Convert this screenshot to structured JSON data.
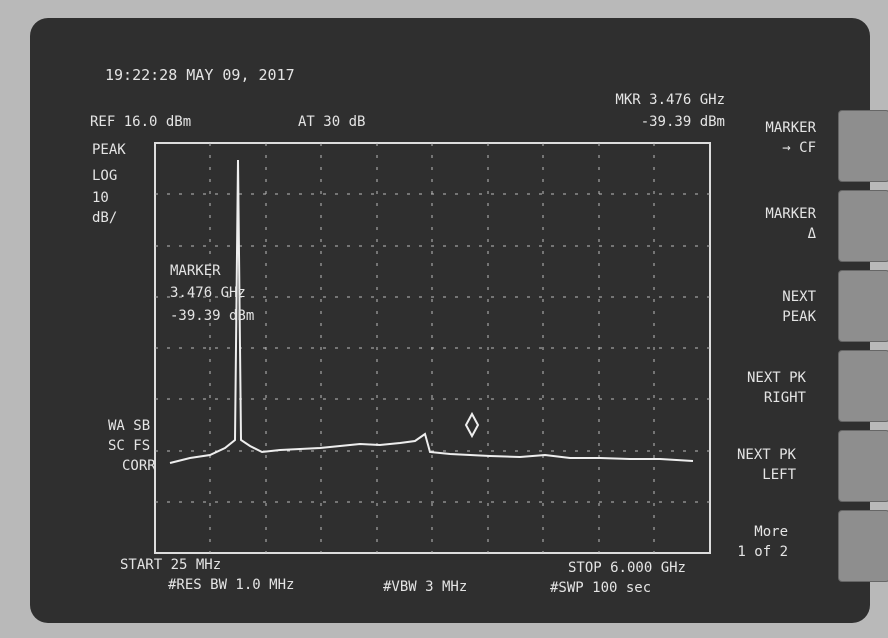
{
  "status": {
    "datetime": "19:22:28 MAY 09, 2017"
  },
  "settings": {
    "reference": "REF 16.0 dBm",
    "attenuation": "AT 30 dB",
    "detector": "PEAK",
    "scale": [
      "LOG",
      "10",
      "dB/"
    ],
    "flags": [
      "WA SB",
      "SC FS",
      "CORR"
    ]
  },
  "marker_readout": {
    "frequency": "MKR 3.476 GHz",
    "level": "-39.39 dBm"
  },
  "marker_annotation": {
    "title": "MARKER",
    "frequency": "3.476 GHz",
    "level": "-39.39 dBm"
  },
  "softkeys": [
    {
      "lines": [
        "MARKER",
        "→ CF"
      ]
    },
    {
      "lines": [
        "MARKER",
        "Δ"
      ]
    },
    {
      "lines": [
        "NEXT",
        "PEAK"
      ]
    },
    {
      "lines": [
        "NEXT PK",
        "RIGHT"
      ]
    },
    {
      "lines": [
        "NEXT PK",
        "LEFT"
      ]
    },
    {
      "lines": [
        "More",
        "1 of 2"
      ]
    }
  ],
  "footer": {
    "start": "START 25 MHz",
    "stop": "STOP 6.000 GHz",
    "rbw": "#RES BW 1.0 MHz",
    "vbw": "#VBW 3 MHz",
    "sweep": "#SWP 100 sec"
  }
}
